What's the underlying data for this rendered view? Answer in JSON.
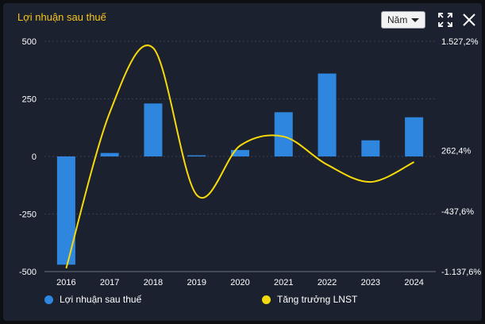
{
  "header": {
    "title": "Lợi nhuận sau thuế",
    "period_selected": "Năm"
  },
  "icons": {
    "expand": "expand-icon",
    "close": "close-icon",
    "dropdown": "chevron-down-icon"
  },
  "colors": {
    "bar": "#2e86de",
    "line": "#f5d90a",
    "title": "#f5c518"
  },
  "chart_data": {
    "type": "bar+line",
    "categories": [
      "2016",
      "2017",
      "2018",
      "2019",
      "2020",
      "2021",
      "2022",
      "2023",
      "2024"
    ],
    "series": [
      {
        "name": "Lợi nhuận sau thuế",
        "type": "bar",
        "axis": "left",
        "values": [
          -470,
          15,
          230,
          5,
          28,
          192,
          360,
          70,
          170
        ]
      },
      {
        "name": "Tăng trưởng LNST",
        "type": "line",
        "axis": "right",
        "values": [
          -1100,
          700,
          1450,
          -250,
          320,
          425,
          100,
          -100,
          130
        ]
      }
    ],
    "y_left": {
      "ticks": [
        "500",
        "250",
        "0",
        "-250",
        "-500"
      ],
      "tick_values": [
        500,
        250,
        0,
        -250,
        -500
      ],
      "ylim": [
        -500,
        500
      ]
    },
    "y_right": {
      "ticks": [
        "1.527,2%",
        "262,4%",
        "-437,6%",
        "-1.137,6%"
      ],
      "tick_values": [
        1527.2,
        262.4,
        -437.6,
        -1137.6
      ]
    },
    "grid": true,
    "legend_position": "bottom"
  }
}
